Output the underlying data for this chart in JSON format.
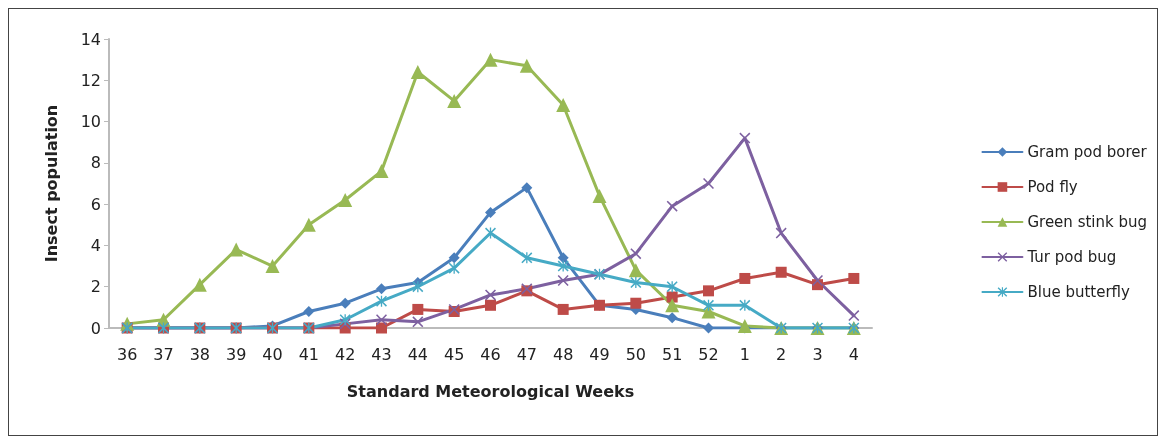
{
  "chart_data": {
    "type": "line",
    "xlabel": "Standard Meteorological Weeks",
    "ylabel": "Insect population",
    "categories": [
      "36",
      "37",
      "38",
      "39",
      "40",
      "41",
      "42",
      "43",
      "44",
      "45",
      "46",
      "47",
      "48",
      "49",
      "50",
      "51",
      "52",
      "1",
      "2",
      "3",
      "4"
    ],
    "ylim": [
      0,
      14
    ],
    "yticks": [
      0,
      2,
      4,
      6,
      8,
      10,
      12,
      14
    ],
    "grid": false,
    "legend": "right",
    "line_style": "solid",
    "series": [
      {
        "name": "Gram pod borer",
        "color": "#4a7ebb",
        "marker": "diamond",
        "values": [
          0,
          0,
          0,
          0,
          0.1,
          0.8,
          1.2,
          1.9,
          2.2,
          3.4,
          5.6,
          6.8,
          3.4,
          1.1,
          0.9,
          0.5,
          0,
          0,
          0,
          0,
          0
        ]
      },
      {
        "name": "Pod fly",
        "color": "#be4b48",
        "marker": "square",
        "values": [
          0,
          0,
          0,
          0,
          0,
          0,
          0,
          0,
          0.9,
          0.8,
          1.1,
          1.8,
          0.9,
          1.1,
          1.2,
          1.5,
          1.8,
          2.4,
          2.7,
          2.1,
          2.4
        ]
      },
      {
        "name": "Green stink bug",
        "color": "#98b954",
        "marker": "triangle",
        "values": [
          0.2,
          0.4,
          2.1,
          3.8,
          3.0,
          5.0,
          6.2,
          7.6,
          12.4,
          11.0,
          13.0,
          12.7,
          10.8,
          6.4,
          2.8,
          1.1,
          0.8,
          0.1,
          0,
          0,
          0
        ]
      },
      {
        "name": "Tur pod bug",
        "color": "#7d60a0",
        "marker": "cross",
        "values": [
          0,
          0,
          0,
          0,
          0,
          0,
          0.2,
          0.4,
          0.3,
          0.9,
          1.6,
          1.9,
          2.3,
          2.6,
          3.6,
          5.9,
          7.0,
          9.2,
          4.6,
          2.3,
          0.6
        ]
      },
      {
        "name": "Blue butterfly",
        "color": "#46aac5",
        "marker": "star",
        "values": [
          0,
          0,
          0,
          0,
          0,
          0,
          0.4,
          1.3,
          2.0,
          2.9,
          4.6,
          3.4,
          3.0,
          2.6,
          2.2,
          2.0,
          1.1,
          1.1,
          0,
          0,
          0
        ]
      }
    ]
  }
}
